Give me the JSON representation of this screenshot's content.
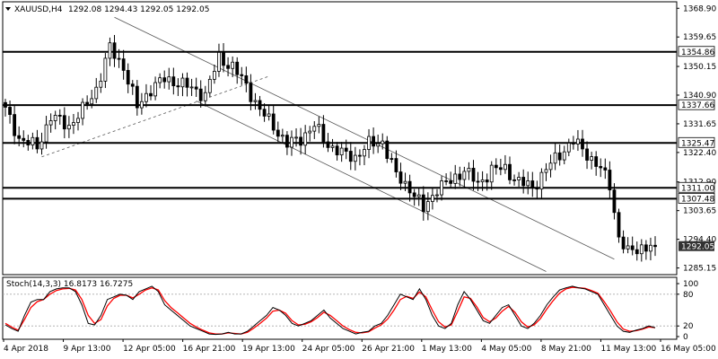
{
  "symbol_label": "XAUUSD,H4",
  "ohlc_text": "1292.08 1294.43 1292.05 1292.05",
  "last_price_tag": "1292.05",
  "stoch_label": "Stoch(14,3,3) 16.8173 16.7275",
  "colors": {
    "background": "#ffffff",
    "candle": "#000000",
    "level_line": "#000000",
    "channel": "#555555",
    "stoch_main": "#000000",
    "stoch_signal": "#ff0000",
    "price_tag_bg": "#323232",
    "price_tag_text": "#ffffff"
  },
  "chart_data": [
    {
      "type": "candlestick",
      "title": "XAUUSD,H4",
      "y_ticks": [
        "1368.90",
        "1359.65",
        "1350.15",
        "1340.90",
        "1331.65",
        "1322.40",
        "1312.90",
        "1303.65",
        "1294.40",
        "1285.15"
      ],
      "x_ticks": [
        "4 Apr 2018",
        "9 Apr 13:00",
        "12 Apr 05:00",
        "16 Apr 21:00",
        "19 Apr 13:00",
        "24 Apr 05:00",
        "26 Apr 21:00",
        "1 May 13:00",
        "4 May 05:00",
        "8 May 21:00",
        "11 May 13:00",
        "16 May 05:00"
      ],
      "ylim": [
        1283,
        1371
      ],
      "horizontal_levels": [
        {
          "label": "1354.86",
          "value": 1354.86
        },
        {
          "label": "1337.66",
          "value": 1337.66
        },
        {
          "label": "1325.47",
          "value": 1325.47
        },
        {
          "label": "1311.00",
          "value": 1311.0
        },
        {
          "label": "1307.48",
          "value": 1307.48
        }
      ],
      "channel_lines": [
        {
          "style": "solid",
          "from": {
            "bar": 24,
            "price": 1366
          },
          "to": {
            "bar": 134,
            "price": 1288
          }
        },
        {
          "style": "solid",
          "from": {
            "bar": 42,
            "price": 1339
          },
          "to": {
            "bar": 119,
            "price": 1284
          }
        },
        {
          "style": "dashed",
          "from": {
            "bar": 8,
            "price": 1321
          },
          "to": {
            "bar": 58,
            "price": 1347
          }
        }
      ],
      "last_close": 1292.05,
      "anchors": [
        [
          0,
          1336
        ],
        [
          3,
          1327
        ],
        [
          7,
          1324
        ],
        [
          10,
          1334
        ],
        [
          14,
          1331
        ],
        [
          17,
          1336
        ],
        [
          20,
          1343
        ],
        [
          23,
          1356
        ],
        [
          26,
          1350
        ],
        [
          29,
          1337
        ],
        [
          32,
          1343
        ],
        [
          35,
          1346
        ],
        [
          38,
          1345
        ],
        [
          41,
          1343
        ],
        [
          44,
          1341
        ],
        [
          47,
          1353
        ],
        [
          50,
          1350
        ],
        [
          53,
          1344
        ],
        [
          56,
          1336
        ],
        [
          59,
          1331
        ],
        [
          62,
          1325
        ],
        [
          65,
          1327
        ],
        [
          68,
          1331
        ],
        [
          71,
          1325
        ],
        [
          74,
          1322
        ],
        [
          77,
          1321
        ],
        [
          80,
          1325
        ],
        [
          83,
          1326
        ],
        [
          86,
          1315
        ],
        [
          89,
          1311
        ],
        [
          92,
          1304
        ],
        [
          95,
          1311
        ],
        [
          98,
          1313
        ],
        [
          101,
          1317
        ],
        [
          104,
          1312
        ],
        [
          107,
          1317
        ],
        [
          110,
          1317
        ],
        [
          113,
          1313
        ],
        [
          116,
          1311
        ],
        [
          119,
          1317
        ],
        [
          122,
          1322
        ],
        [
          125,
          1326
        ],
        [
          128,
          1322
        ],
        [
          131,
          1317
        ],
        [
          133,
          1312
        ],
        [
          135,
          1295
        ],
        [
          137,
          1290
        ],
        [
          140,
          1292
        ],
        [
          143,
          1292.05
        ]
      ]
    },
    {
      "type": "line",
      "title": "Stoch(14,3,3) 16.8173 16.7275",
      "y_ticks": [
        "100",
        "80",
        "20",
        "0"
      ],
      "ylim": [
        0,
        100
      ],
      "levels": [
        80,
        20
      ],
      "series": [
        {
          "values": [
            22,
            15,
            10,
            40,
            65,
            70,
            70,
            85,
            90,
            92,
            92,
            85,
            60,
            25,
            22,
            40,
            70,
            75,
            80,
            78,
            70,
            85,
            90,
            95,
            85,
            60,
            50,
            40,
            30,
            20,
            15,
            10,
            5,
            4,
            5,
            8,
            5,
            5,
            10,
            20,
            30,
            40,
            55,
            50,
            40,
            25,
            20,
            25,
            30,
            40,
            50,
            35,
            25,
            15,
            10,
            5,
            8,
            10,
            20,
            25,
            40,
            60,
            80,
            75,
            70,
            90,
            70,
            40,
            20,
            15,
            25,
            60,
            85,
            70,
            50,
            30,
            25,
            40,
            55,
            60,
            40,
            20,
            15,
            25,
            40,
            60,
            75,
            88,
            92,
            95,
            92,
            90,
            85,
            80,
            60,
            40,
            20,
            10,
            8,
            12,
            15,
            20,
            16.8
          ]
        },
        {
          "values": [
            25,
            18,
            12,
            32,
            55,
            66,
            70,
            80,
            87,
            90,
            91,
            88,
            70,
            40,
            25,
            32,
            58,
            72,
            78,
            78,
            73,
            80,
            88,
            92,
            88,
            68,
            55,
            45,
            35,
            25,
            18,
            12,
            7,
            5,
            5,
            7,
            6,
            5,
            8,
            16,
            25,
            35,
            48,
            50,
            44,
            30,
            22,
            23,
            28,
            36,
            46,
            40,
            30,
            20,
            13,
            8,
            7,
            9,
            16,
            22,
            33,
            50,
            70,
            76,
            72,
            84,
            75,
            50,
            28,
            18,
            22,
            48,
            75,
            72,
            56,
            36,
            28,
            35,
            48,
            57,
            46,
            28,
            18,
            22,
            34,
            52,
            68,
            82,
            90,
            93,
            92,
            91,
            87,
            82,
            66,
            48,
            28,
            14,
            10,
            11,
            14,
            18,
            16.7
          ]
        }
      ]
    }
  ]
}
